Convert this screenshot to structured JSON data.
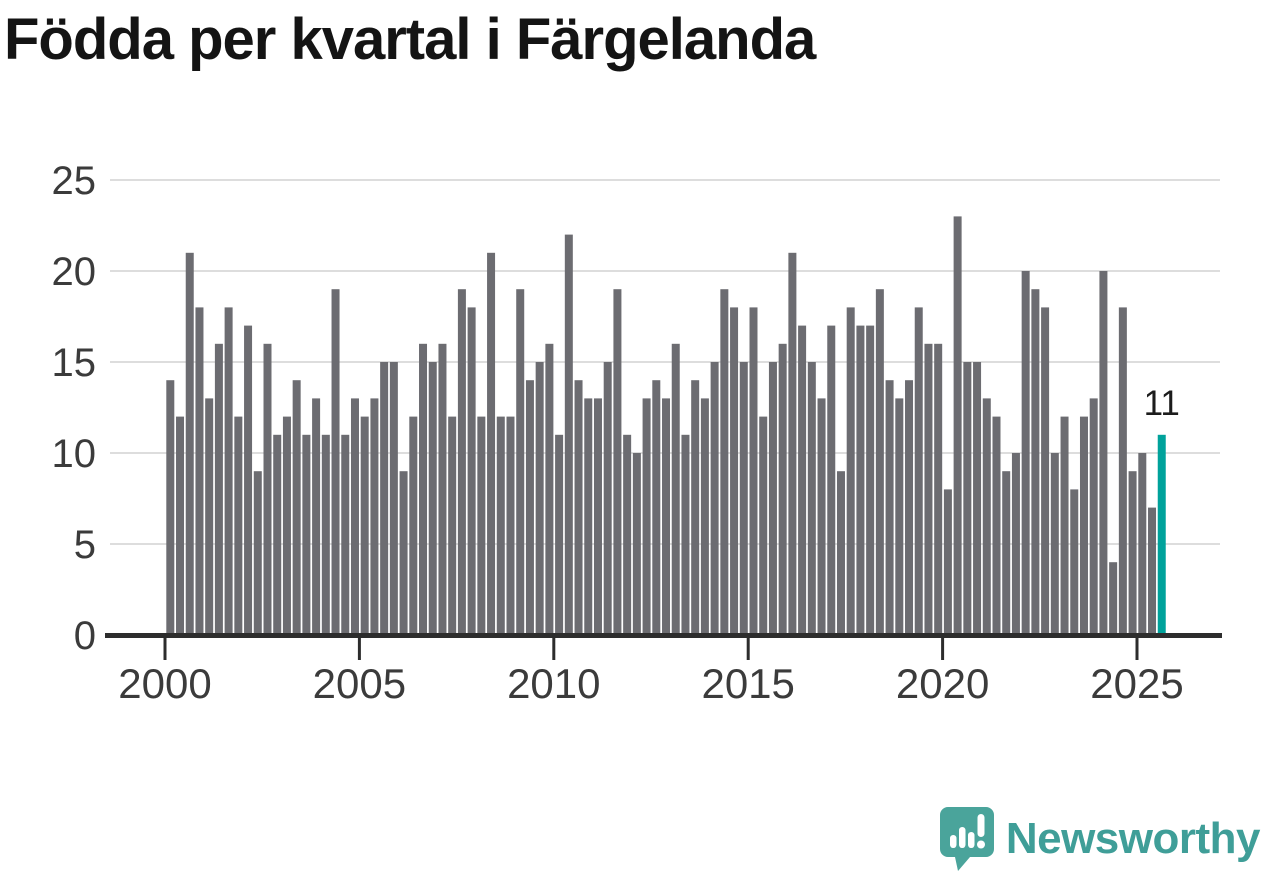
{
  "title": "Födda per kvartal i Färgelanda",
  "logo": {
    "text": "Newsworthy"
  },
  "colors": {
    "background": "#ffffff",
    "bar": "#6c6c71",
    "highlight": "#00a29b",
    "grid": "#dddddd",
    "axis": "#2d2d2d",
    "tick_label": "#3b3b3b",
    "title": "#141414",
    "annotation": "#1c1c1c",
    "logo_bubble": "#4aa49b",
    "logo_text": "#3f9e98"
  },
  "chart_data": {
    "type": "bar",
    "title": "Födda per kvartal i Färgelanda",
    "x_unit": "quarter",
    "start": "2000 Q1",
    "end": "2025 Q3",
    "categories": [
      "2000 Q1",
      "2000 Q2",
      "2000 Q3",
      "2000 Q4",
      "2001 Q1",
      "2001 Q2",
      "2001 Q3",
      "2001 Q4",
      "2002 Q1",
      "2002 Q2",
      "2002 Q3",
      "2002 Q4",
      "2003 Q1",
      "2003 Q2",
      "2003 Q3",
      "2003 Q4",
      "2004 Q1",
      "2004 Q2",
      "2004 Q3",
      "2004 Q4",
      "2005 Q1",
      "2005 Q2",
      "2005 Q3",
      "2005 Q4",
      "2006 Q1",
      "2006 Q2",
      "2006 Q3",
      "2006 Q4",
      "2007 Q1",
      "2007 Q2",
      "2007 Q3",
      "2007 Q4",
      "2008 Q1",
      "2008 Q2",
      "2008 Q3",
      "2008 Q4",
      "2009 Q1",
      "2009 Q2",
      "2009 Q3",
      "2009 Q4",
      "2010 Q1",
      "2010 Q2",
      "2010 Q3",
      "2010 Q4",
      "2011 Q1",
      "2011 Q2",
      "2011 Q3",
      "2011 Q4",
      "2012 Q1",
      "2012 Q2",
      "2012 Q3",
      "2012 Q4",
      "2013 Q1",
      "2013 Q2",
      "2013 Q3",
      "2013 Q4",
      "2014 Q1",
      "2014 Q2",
      "2014 Q3",
      "2014 Q4",
      "2015 Q1",
      "2015 Q2",
      "2015 Q3",
      "2015 Q4",
      "2016 Q1",
      "2016 Q2",
      "2016 Q3",
      "2016 Q4",
      "2017 Q1",
      "2017 Q2",
      "2017 Q3",
      "2017 Q4",
      "2018 Q1",
      "2018 Q2",
      "2018 Q3",
      "2018 Q4",
      "2019 Q1",
      "2019 Q2",
      "2019 Q3",
      "2019 Q4",
      "2020 Q1",
      "2020 Q2",
      "2020 Q3",
      "2020 Q4",
      "2021 Q1",
      "2021 Q2",
      "2021 Q3",
      "2021 Q4",
      "2022 Q1",
      "2022 Q2",
      "2022 Q3",
      "2022 Q4",
      "2023 Q1",
      "2023 Q2",
      "2023 Q3",
      "2023 Q4",
      "2024 Q1",
      "2024 Q2",
      "2024 Q3",
      "2024 Q4",
      "2025 Q1",
      "2025 Q2",
      "2025 Q3"
    ],
    "values": [
      14,
      12,
      21,
      18,
      13,
      16,
      18,
      12,
      17,
      9,
      16,
      11,
      12,
      14,
      11,
      13,
      11,
      19,
      11,
      13,
      12,
      13,
      15,
      15,
      9,
      12,
      16,
      15,
      16,
      12,
      19,
      18,
      12,
      21,
      12,
      12,
      19,
      14,
      15,
      16,
      11,
      22,
      14,
      13,
      13,
      15,
      19,
      11,
      10,
      13,
      14,
      13,
      16,
      11,
      14,
      13,
      15,
      19,
      18,
      15,
      18,
      12,
      15,
      16,
      21,
      17,
      15,
      13,
      17,
      9,
      18,
      17,
      17,
      19,
      14,
      13,
      14,
      18,
      16,
      16,
      8,
      23,
      15,
      15,
      13,
      12,
      9,
      10,
      20,
      19,
      18,
      10,
      12,
      8,
      12,
      13,
      20,
      4,
      18,
      9,
      10,
      7,
      11
    ],
    "highlight": {
      "index": 102,
      "category": "2025 Q3",
      "value": 11,
      "label": "11"
    },
    "ylim": [
      0,
      25
    ],
    "yticks": [
      0,
      5,
      10,
      15,
      20,
      25
    ],
    "xticks": [
      2000,
      2005,
      2010,
      2015,
      2020,
      2025
    ],
    "grid": true,
    "legend": false
  }
}
